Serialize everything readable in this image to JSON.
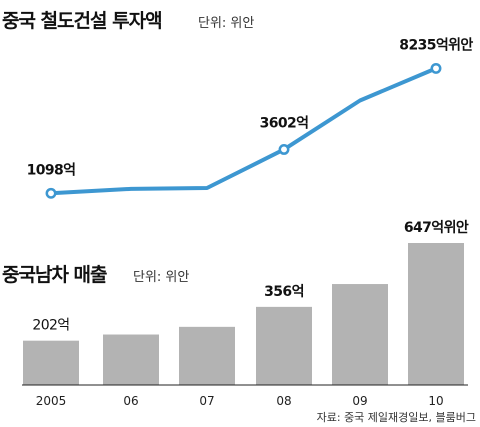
{
  "chart_data": [
    {
      "type": "line",
      "title": "중국 철도건설 투자액",
      "unit": "단위: 위안",
      "x": [
        "2005",
        "06",
        "07",
        "08",
        "09",
        "10"
      ],
      "values": [
        1098,
        1350,
        1400,
        3602,
        6400,
        8235
      ],
      "data_labels": [
        {
          "index": 0,
          "text": "1098억"
        },
        {
          "index": 3,
          "text": "3602억"
        },
        {
          "index": 5,
          "text": "8235억위안"
        }
      ],
      "marked_points": [
        0,
        3,
        5
      ],
      "line_color": "#3d97d1",
      "ylim": [
        0,
        9000
      ]
    },
    {
      "type": "bar",
      "title": "중국남차 매출",
      "unit": "단위: 위안",
      "categories": [
        "2005",
        "06",
        "07",
        "08",
        "09",
        "10"
      ],
      "values": [
        202,
        230,
        265,
        356,
        460,
        647
      ],
      "data_labels": [
        {
          "index": 0,
          "text": "202억"
        },
        {
          "index": 3,
          "text": "356억"
        },
        {
          "index": 5,
          "text": "647억위안"
        }
      ],
      "bar_color": "#b3b3b3",
      "ylim": [
        0,
        700
      ]
    }
  ],
  "source": "자료: 중국 제일재경일보, 블룸버그"
}
